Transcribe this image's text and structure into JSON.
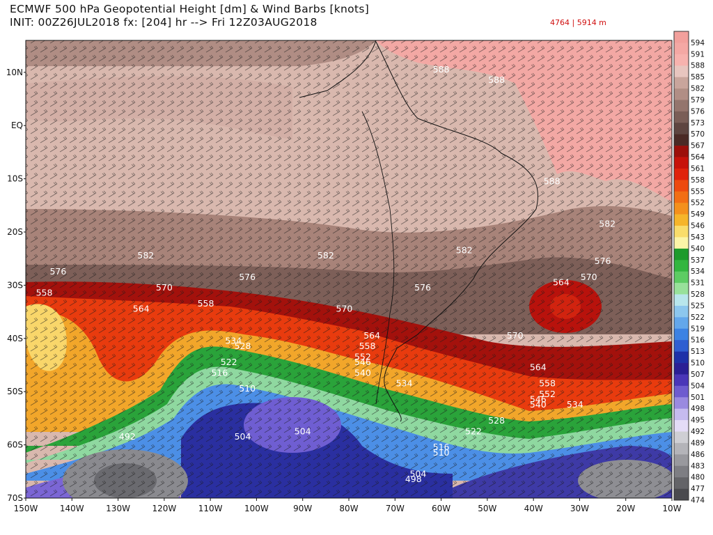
{
  "header": {
    "title_line1": "ECMWF 500 hPa Geopotential Height [dm] & Wind Barbs [knots]",
    "title_line2": "INIT: 00Z26JUL2018 fx: [204] hr --> Fri 12Z03AUG2018",
    "range_text": "4764 | 5914 m"
  },
  "map": {
    "lon_labels": [
      "150W",
      "140W",
      "130W",
      "120W",
      "110W",
      "100W",
      "90W",
      "80W",
      "70W",
      "60W",
      "50W",
      "40W",
      "30W",
      "20W",
      "10W"
    ],
    "lat_labels": [
      "10N",
      "EQ",
      "10S",
      "20S",
      "30S",
      "40S",
      "50S",
      "60S",
      "70S"
    ],
    "contour_labels": [
      {
        "text": "588",
        "lon": -60,
        "lat": 10
      },
      {
        "text": "588",
        "lon": -48,
        "lat": 8
      },
      {
        "text": "588",
        "lon": -36,
        "lat": -11
      },
      {
        "text": "582",
        "lon": -24,
        "lat": -19
      },
      {
        "text": "582",
        "lon": -124,
        "lat": -25
      },
      {
        "text": "582",
        "lon": -85,
        "lat": -25
      },
      {
        "text": "582",
        "lon": -55,
        "lat": -24
      },
      {
        "text": "576",
        "lon": -143,
        "lat": -28
      },
      {
        "text": "576",
        "lon": -102,
        "lat": -29
      },
      {
        "text": "576",
        "lon": -64,
        "lat": -31
      },
      {
        "text": "576",
        "lon": -25,
        "lat": -26
      },
      {
        "text": "570",
        "lon": -120,
        "lat": -31
      },
      {
        "text": "570",
        "lon": -81,
        "lat": -35
      },
      {
        "text": "570",
        "lon": -44,
        "lat": -40
      },
      {
        "text": "570",
        "lon": -28,
        "lat": -29
      },
      {
        "text": "564",
        "lon": -34,
        "lat": -30
      },
      {
        "text": "564",
        "lon": -125,
        "lat": -35
      },
      {
        "text": "564",
        "lon": -75,
        "lat": -40
      },
      {
        "text": "564",
        "lon": -39,
        "lat": -46
      },
      {
        "text": "558",
        "lon": -146,
        "lat": -32
      },
      {
        "text": "558",
        "lon": -111,
        "lat": -34
      },
      {
        "text": "558",
        "lon": -76,
        "lat": -42
      },
      {
        "text": "558",
        "lon": -37,
        "lat": -49
      },
      {
        "text": "552",
        "lon": -77,
        "lat": -44
      },
      {
        "text": "552",
        "lon": -37,
        "lat": -51
      },
      {
        "text": "546",
        "lon": -77,
        "lat": -45
      },
      {
        "text": "546",
        "lon": -39,
        "lat": -52
      },
      {
        "text": "540",
        "lon": -77,
        "lat": -47
      },
      {
        "text": "540",
        "lon": -39,
        "lat": -53
      },
      {
        "text": "534",
        "lon": -105,
        "lat": -41
      },
      {
        "text": "534",
        "lon": -68,
        "lat": -49
      },
      {
        "text": "534",
        "lon": -31,
        "lat": -53
      },
      {
        "text": "528",
        "lon": -103,
        "lat": -42
      },
      {
        "text": "528",
        "lon": -48,
        "lat": -56
      },
      {
        "text": "522",
        "lon": -106,
        "lat": -45
      },
      {
        "text": "522",
        "lon": -53,
        "lat": -58
      },
      {
        "text": "516",
        "lon": -108,
        "lat": -47
      },
      {
        "text": "516",
        "lon": -60,
        "lat": -61
      },
      {
        "text": "510",
        "lon": -102,
        "lat": -50
      },
      {
        "text": "510",
        "lon": -60,
        "lat": -62
      },
      {
        "text": "504",
        "lon": -103,
        "lat": -59
      },
      {
        "text": "504",
        "lon": -90,
        "lat": -58
      },
      {
        "text": "504",
        "lon": -65,
        "lat": -66
      },
      {
        "text": "498",
        "lon": -66,
        "lat": -67
      },
      {
        "text": "492",
        "lon": -128,
        "lat": -59
      }
    ]
  },
  "colorbar": {
    "labels": [
      "594",
      "591",
      "588",
      "585",
      "582",
      "579",
      "576",
      "573",
      "570",
      "567",
      "564",
      "561",
      "558",
      "555",
      "552",
      "549",
      "546",
      "543",
      "540",
      "537",
      "534",
      "531",
      "528",
      "525",
      "522",
      "519",
      "516",
      "513",
      "510",
      "507",
      "504",
      "501",
      "498",
      "495",
      "492",
      "489",
      "486",
      "483",
      "480",
      "477",
      "474"
    ],
    "colors": [
      "#f2a09c",
      "#f4a8a4",
      "#f7b2ae",
      "#e8c5bf",
      "#c9a59c",
      "#b18e85",
      "#94756d",
      "#7a5e57",
      "#5e4540",
      "#4b2a25",
      "#9c0f0a",
      "#c7120a",
      "#e0220c",
      "#ee4a0f",
      "#f26e14",
      "#f4901c",
      "#f6b52a",
      "#f9dd6b",
      "#fbf5a8",
      "#1d9b2c",
      "#33b63f",
      "#5dcc63",
      "#98e19a",
      "#b8e6ec",
      "#8cc7ee",
      "#63a7eb",
      "#3c82e3",
      "#2f5ed1",
      "#1e31a8",
      "#2a1f95",
      "#4a36b8",
      "#6e5ccf",
      "#9a8ae0",
      "#c6bbef",
      "#e4dcf7",
      "#cfcfd4",
      "#b4b4b9",
      "#99999e",
      "#7e7e83",
      "#646468",
      "#4a4a4e"
    ]
  }
}
